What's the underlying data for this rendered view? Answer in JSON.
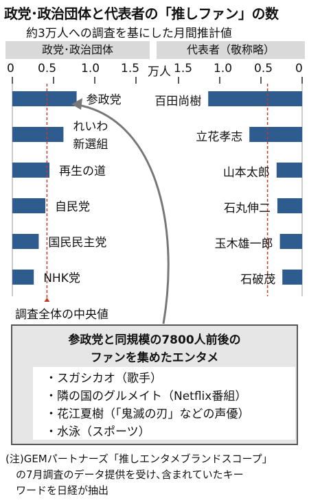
{
  "title": "政党･政治団体と代表者の「推しファン」の数",
  "subtitle": "約3万人への調査を基にした月間推計値",
  "left_panel": {
    "header": "政党･政治団体",
    "ticks": [
      "0",
      "0.5",
      "1.0",
      "1.5"
    ]
  },
  "right_panel": {
    "header": "代表者（敬称略）",
    "ticks": [
      "1.5",
      "1.0",
      "0.5",
      "0"
    ]
  },
  "unit_label": "万人",
  "median_label": "調査全体の中央値",
  "chart_data": [
    {
      "type": "bar",
      "orientation": "horizontal",
      "panel": "政党･政治団体",
      "categories": [
        "参政党",
        "れいわ新選組",
        "再生の道",
        "自民党",
        "国民民主党",
        "NHK党"
      ],
      "category_lines": [
        [
          "参政党"
        ],
        [
          "れいわ",
          "新選組"
        ],
        [
          "再生の道"
        ],
        [
          "自民党"
        ],
        [
          "国民民主党"
        ],
        [
          "NHK党"
        ]
      ],
      "values": [
        0.78,
        0.62,
        0.45,
        0.4,
        0.32,
        0.26
      ],
      "xlim": [
        0,
        1.5
      ],
      "median": 0.42,
      "color": "#2e5c8e"
    },
    {
      "type": "bar",
      "orientation": "horizontal",
      "direction": "right-to-left",
      "panel": "代表者（敬称略）",
      "categories": [
        "百田尚樹",
        "立花孝志",
        "山本太郎",
        "石丸伸二",
        "玉木雄一郎",
        "石破茂"
      ],
      "values": [
        1.14,
        0.64,
        0.31,
        0.3,
        0.27,
        0.24
      ],
      "xlim": [
        0,
        1.5
      ],
      "median": 0.42,
      "color": "#2e5c8e"
    }
  ],
  "callout": {
    "title_lines": [
      "参政党と同規模の7800人前後の",
      "ファンを集めたエンタメ"
    ],
    "items": [
      "・スガシカオ（歌手）",
      "・隣の国のグルメイト（Netflix番組）",
      "・花江夏樹（「鬼滅の刃」などの声優）",
      "・水泳（スポーツ）"
    ]
  },
  "note_lines": [
    "(注)GEMパートナーズ「推しエンタメブランドスコープ」",
    "　の7月調査のデータ提供を受け､含まれていたキー",
    "　ワードを日経が抽出"
  ]
}
